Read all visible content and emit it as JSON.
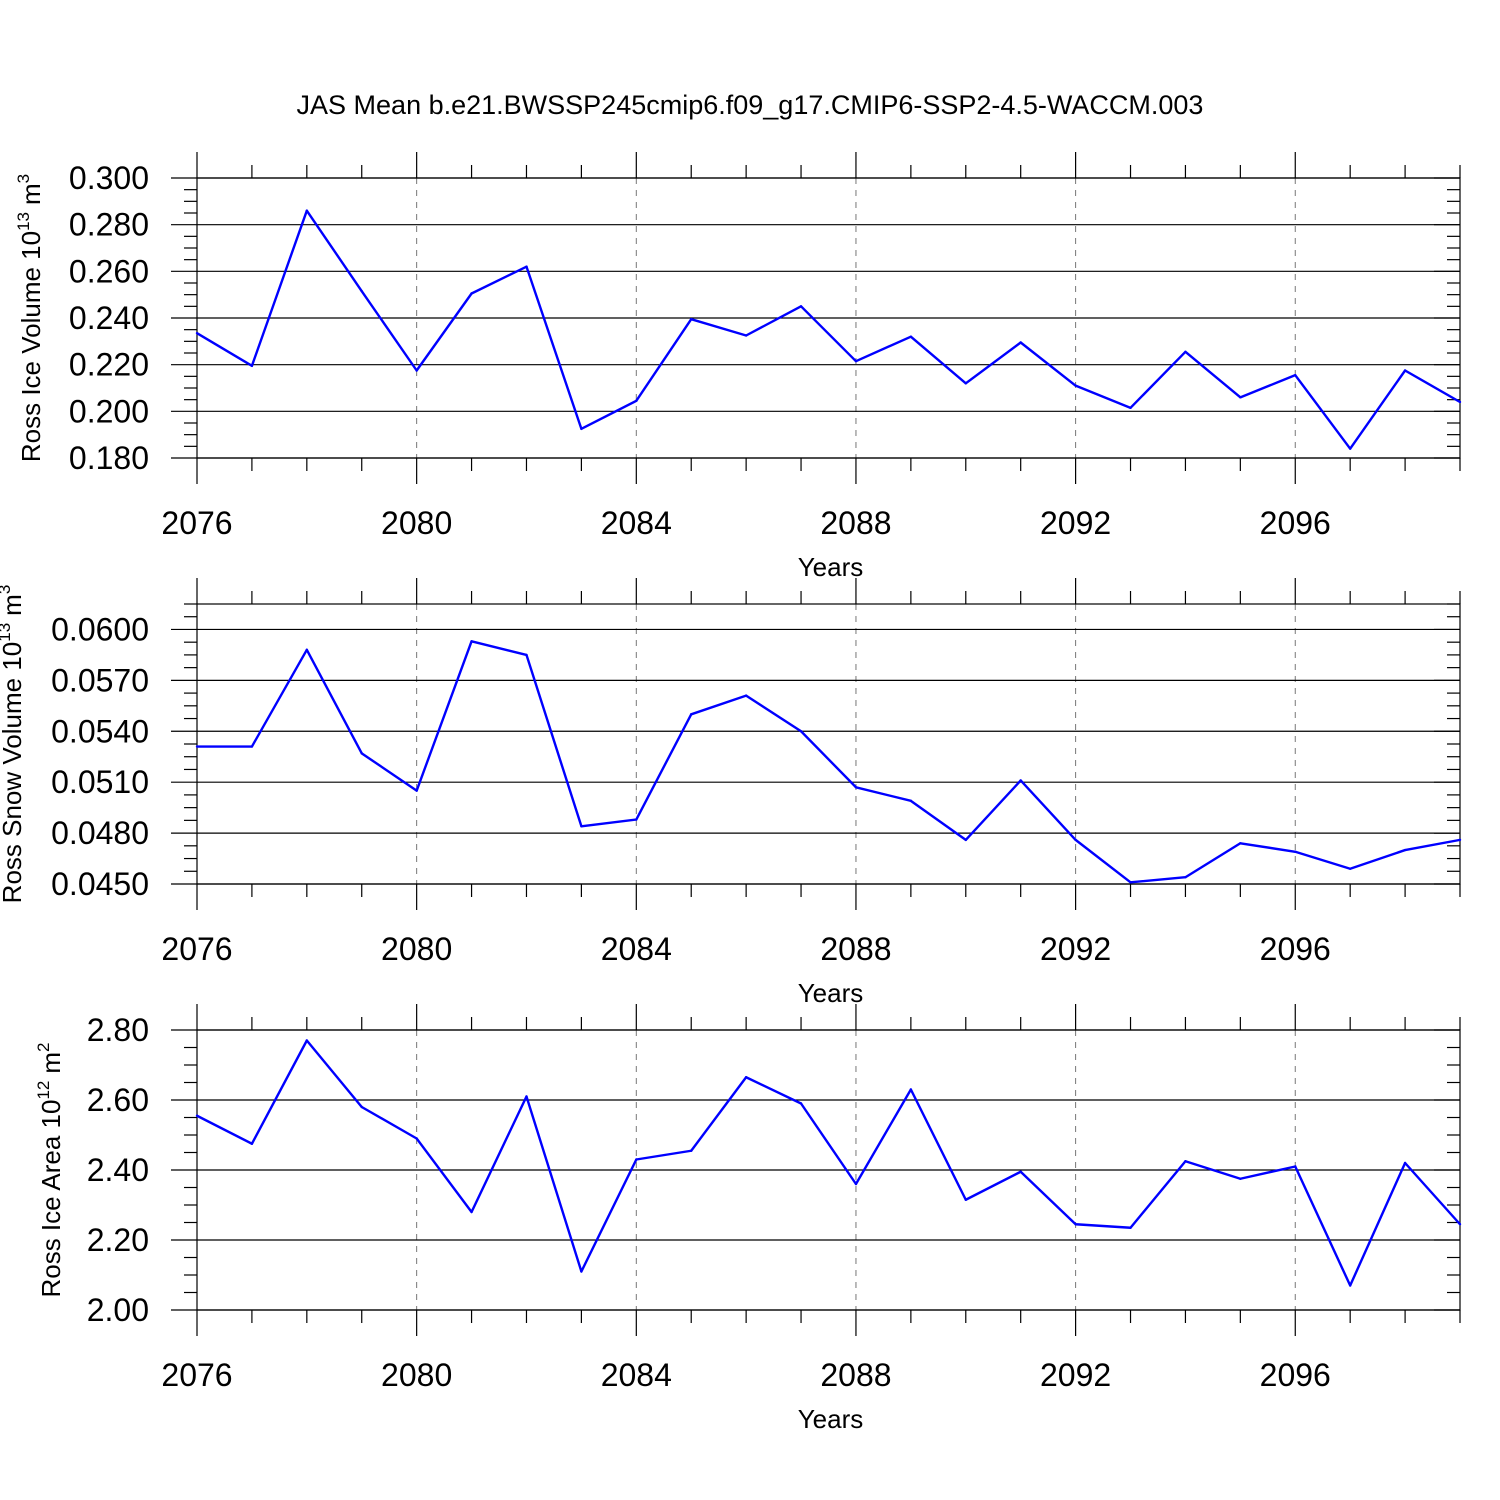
{
  "figure": {
    "title": "JAS Mean b.e21.BWSSP245cmip6.f09_g17.CMIP6-SSP2-4.5-WACCM.003"
  },
  "chart_data": [
    {
      "type": "line",
      "xlabel": "Years",
      "ylabel_main": "Ross Ice Volume 10",
      "ylabel_exp": "13",
      "ylabel_unit": "m",
      "ylabel_unit_exp": "3",
      "xlim": [
        2076,
        2099
      ],
      "ylim": [
        0.18,
        0.3
      ],
      "x_ticks": [
        2076,
        2080,
        2084,
        2088,
        2092,
        2096
      ],
      "x_tick_labels": [
        "2076",
        "2080",
        "2084",
        "2088",
        "2092",
        "2096"
      ],
      "y_ticks": [
        0.18,
        0.2,
        0.22,
        0.24,
        0.26,
        0.28,
        0.3
      ],
      "y_tick_labels": [
        "0.180",
        "0.200",
        "0.220",
        "0.240",
        "0.260",
        "0.280",
        "0.300"
      ],
      "grid": "x-dashed",
      "color": "#0000ff",
      "x": [
        2076,
        2077,
        2078,
        2079,
        2080,
        2081,
        2082,
        2083,
        2084,
        2085,
        2086,
        2087,
        2088,
        2089,
        2090,
        2091,
        2092,
        2093,
        2094,
        2095,
        2096,
        2097,
        2098,
        2099
      ],
      "values": [
        0.2335,
        0.2195,
        0.286,
        0.2515,
        0.2175,
        0.2505,
        0.262,
        0.1925,
        0.2045,
        0.2395,
        0.2325,
        0.245,
        0.2215,
        0.232,
        0.212,
        0.2295,
        0.211,
        0.2015,
        0.2255,
        0.206,
        0.2155,
        0.184,
        0.2175,
        0.204
      ]
    },
    {
      "type": "line",
      "xlabel": "Years",
      "ylabel_main": "Ross Snow Volume 10",
      "ylabel_exp": "13",
      "ylabel_unit": "m",
      "ylabel_unit_exp": "3",
      "xlim": [
        2076,
        2099
      ],
      "ylim": [
        0.045,
        0.0615
      ],
      "x_ticks": [
        2076,
        2080,
        2084,
        2088,
        2092,
        2096
      ],
      "x_tick_labels": [
        "2076",
        "2080",
        "2084",
        "2088",
        "2092",
        "2096"
      ],
      "y_ticks": [
        0.045,
        0.048,
        0.051,
        0.054,
        0.057,
        0.06
      ],
      "y_tick_labels": [
        "0.0450",
        "0.0480",
        "0.0510",
        "0.0540",
        "0.0570",
        "0.0600"
      ],
      "grid": "x-dashed",
      "color": "#0000ff",
      "x": [
        2076,
        2077,
        2078,
        2079,
        2080,
        2081,
        2082,
        2083,
        2084,
        2085,
        2086,
        2087,
        2088,
        2089,
        2090,
        2091,
        2092,
        2093,
        2094,
        2095,
        2096,
        2097,
        2098,
        2099
      ],
      "values": [
        0.0531,
        0.0531,
        0.0588,
        0.0527,
        0.0505,
        0.0593,
        0.0585,
        0.0484,
        0.0488,
        0.055,
        0.0561,
        0.054,
        0.0507,
        0.0499,
        0.0476,
        0.0511,
        0.0476,
        0.0451,
        0.0454,
        0.0474,
        0.0469,
        0.0459,
        0.047,
        0.0476
      ]
    },
    {
      "type": "line",
      "xlabel": "Years",
      "ylabel_main": "Ross Ice Area 10",
      "ylabel_exp": "12",
      "ylabel_unit": "m",
      "ylabel_unit_exp": "2",
      "xlim": [
        2076,
        2099
      ],
      "ylim": [
        2.0,
        2.8
      ],
      "x_ticks": [
        2076,
        2080,
        2084,
        2088,
        2092,
        2096
      ],
      "x_tick_labels": [
        "2076",
        "2080",
        "2084",
        "2088",
        "2092",
        "2096"
      ],
      "y_ticks": [
        2.0,
        2.2,
        2.4,
        2.6,
        2.8
      ],
      "y_tick_labels": [
        "2.00",
        "2.20",
        "2.40",
        "2.60",
        "2.80"
      ],
      "grid": "x-dashed",
      "color": "#0000ff",
      "x": [
        2076,
        2077,
        2078,
        2079,
        2080,
        2081,
        2082,
        2083,
        2084,
        2085,
        2086,
        2087,
        2088,
        2089,
        2090,
        2091,
        2092,
        2093,
        2094,
        2095,
        2096,
        2097,
        2098,
        2099
      ],
      "values": [
        2.555,
        2.475,
        2.77,
        2.58,
        2.49,
        2.28,
        2.61,
        2.11,
        2.43,
        2.455,
        2.665,
        2.59,
        2.36,
        2.63,
        2.315,
        2.395,
        2.245,
        2.235,
        2.425,
        2.375,
        2.41,
        2.07,
        2.42,
        2.245
      ]
    }
  ]
}
